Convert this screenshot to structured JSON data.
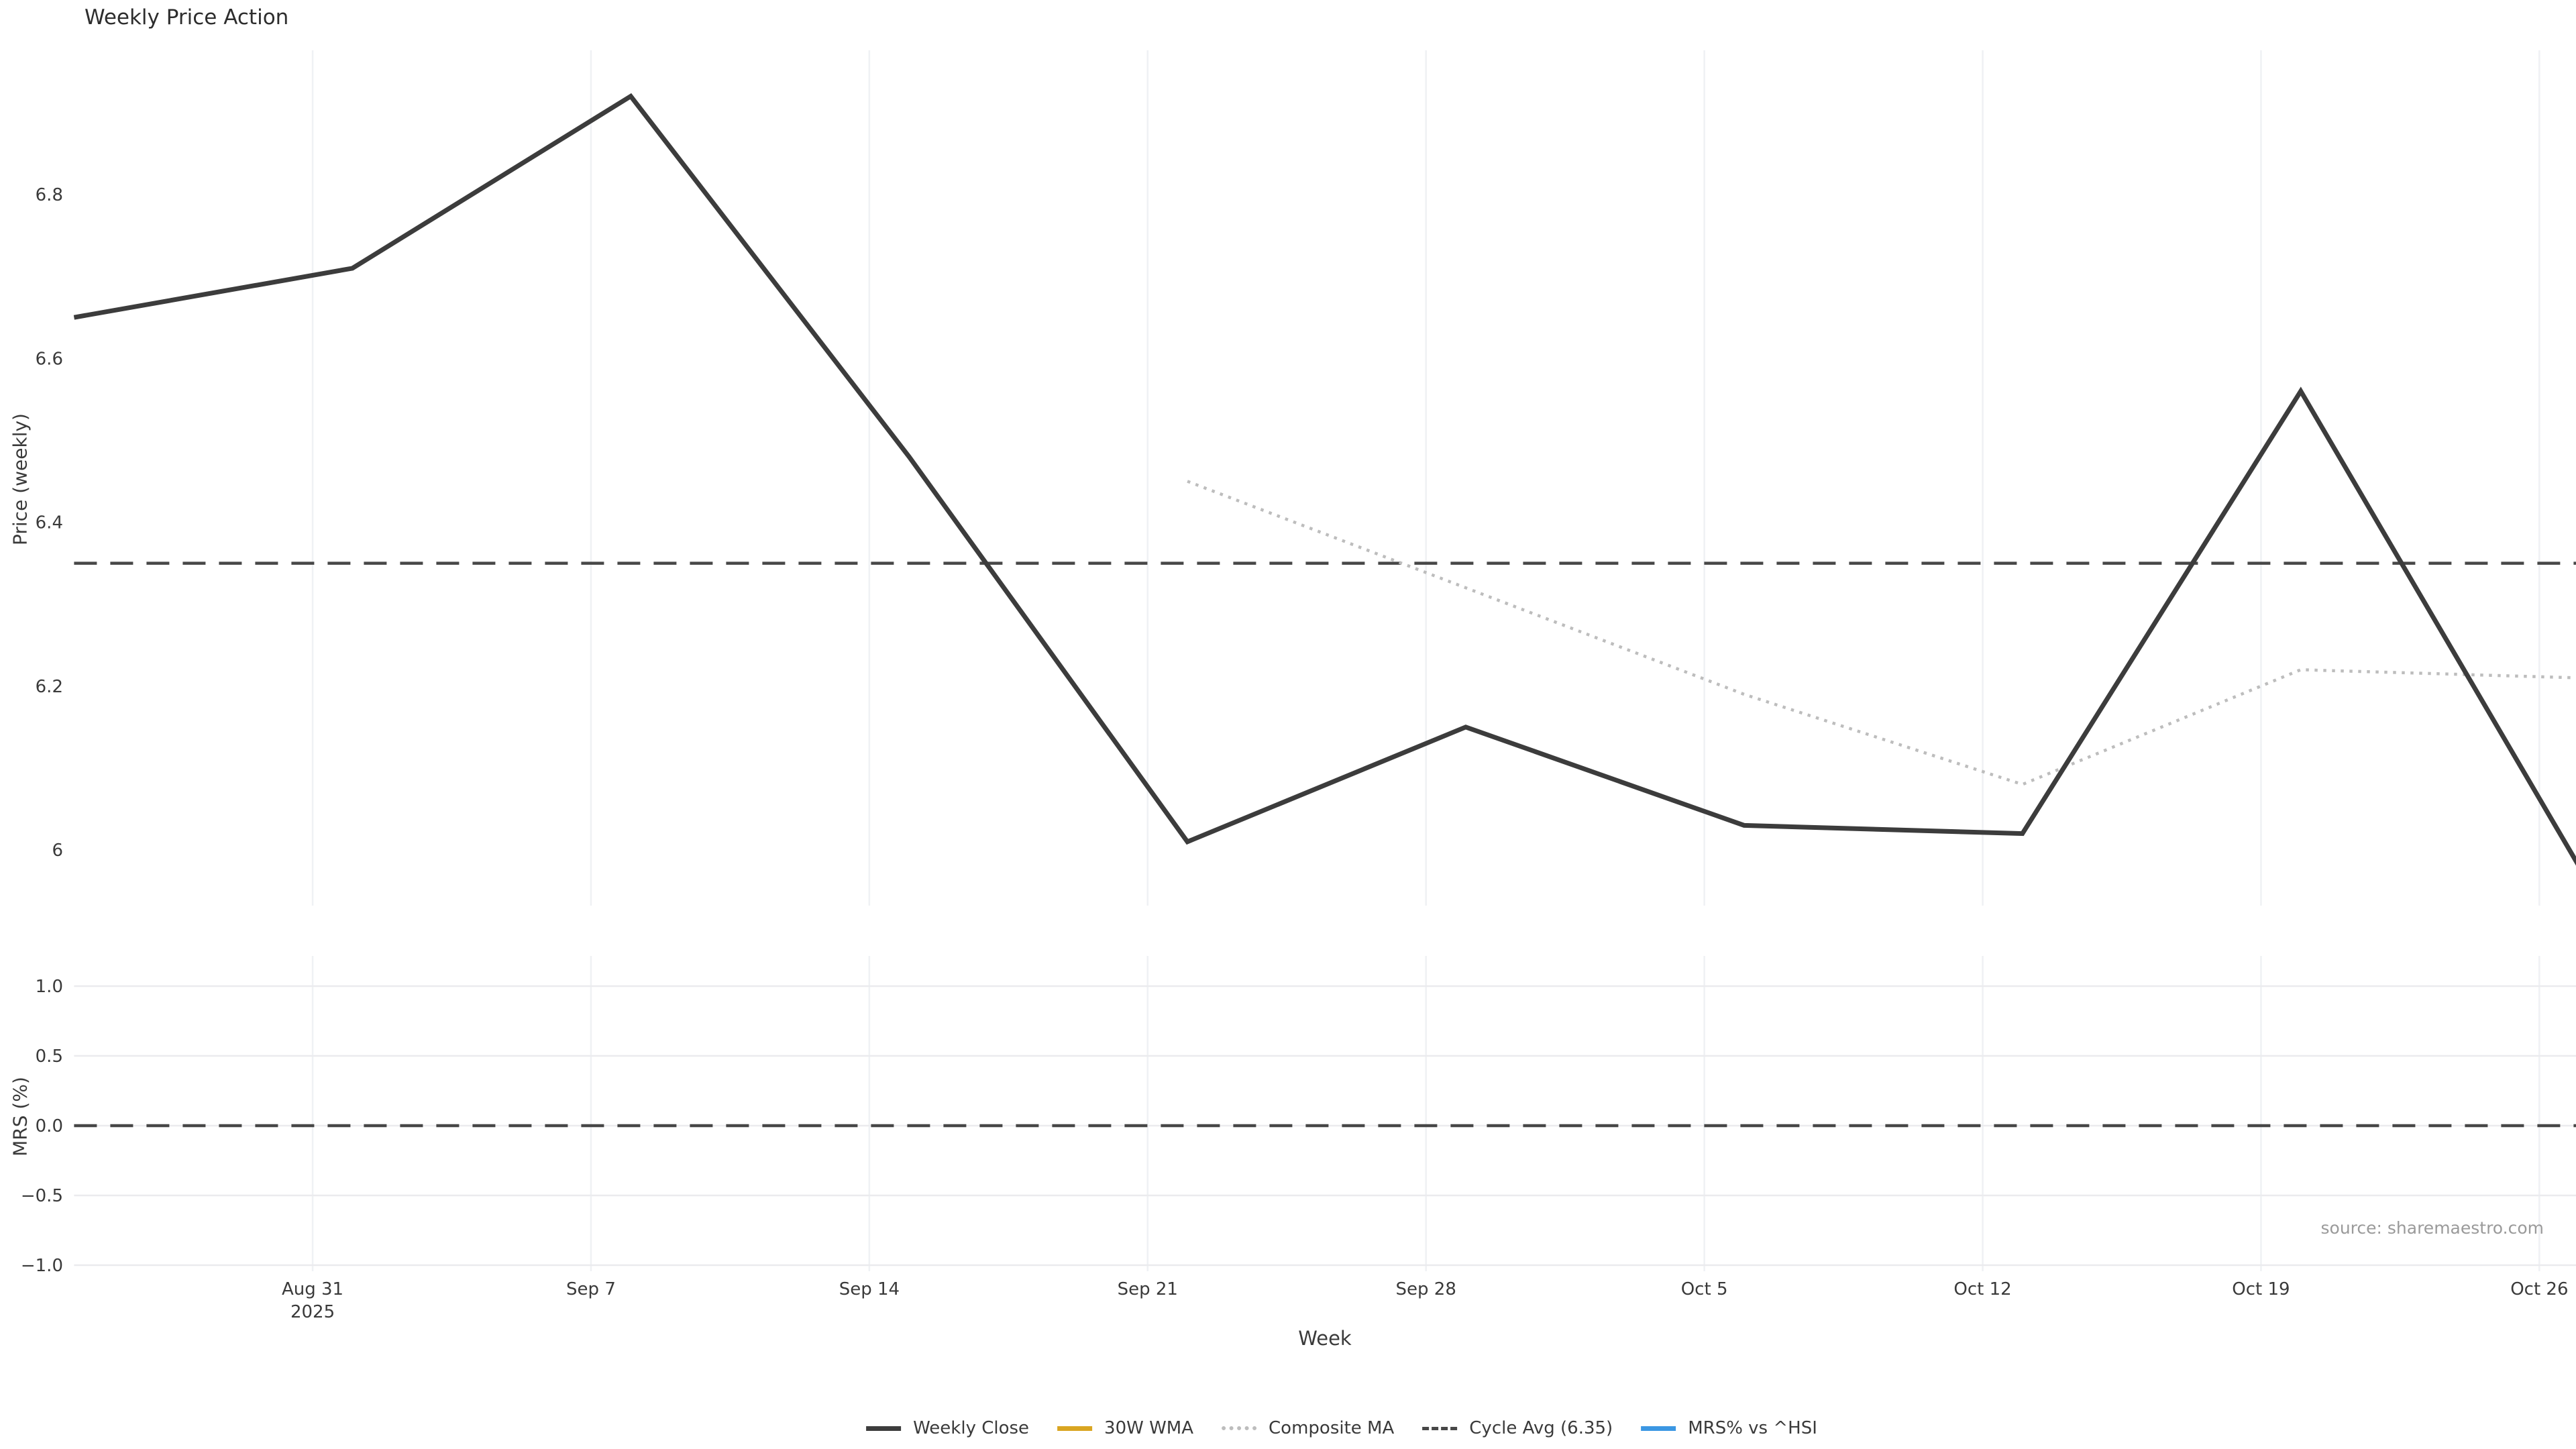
{
  "title": "Weekly Price Action",
  "source": "source: sharemaestro.com",
  "axes": {
    "price": {
      "label": "Price (weekly)",
      "tick_labels": [
        "6.8",
        "6.6",
        "6.4",
        "6.2",
        "6"
      ],
      "tick_values": [
        6.8,
        6.6,
        6.4,
        6.2,
        6.0
      ]
    },
    "mrs": {
      "label": "MRS (%)",
      "tick_labels": [
        "1.0",
        "0.5",
        "0.0",
        "−0.5",
        "−1.0"
      ],
      "tick_values": [
        1.0,
        0.5,
        0.0,
        -0.5,
        -1.0
      ]
    },
    "x": {
      "label": "Week",
      "tick_labels": [
        "Aug 31\n2025",
        "Sep 7",
        "Sep 14",
        "Sep 21",
        "Sep 28",
        "Oct 5",
        "Oct 12",
        "Oct 19",
        "Oct 26"
      ],
      "tick_positions_days": [
        6,
        13,
        20,
        27,
        34,
        41,
        48,
        55,
        62
      ]
    }
  },
  "legend": [
    {
      "label": "Weekly Close",
      "color": "#3c3c3c",
      "style": "solid"
    },
    {
      "label": "30W WMA",
      "color": "#d9a521",
      "style": "solid"
    },
    {
      "label": "Composite MA",
      "color": "#bdbdbd",
      "style": "dotted"
    },
    {
      "label": "Cycle Avg (6.35)",
      "color": "#474747",
      "style": "dashed"
    },
    {
      "label": "MRS% vs ^HSI",
      "color": "#3b97e3",
      "style": "solid"
    }
  ],
  "colors": {
    "weekly_close": "#3c3c3c",
    "wma_30w": "#d9a521",
    "composite_ma": "#bdbdbd",
    "cycle_avg": "#474747",
    "mrs_line": "#3b97e3",
    "grid_vertical": "#eff1f4",
    "grid_horizontal": "#ebebee",
    "text": "#3a3a3a",
    "source_text": "#9a9a9a"
  },
  "chart_data": [
    {
      "type": "line",
      "panel": "price",
      "title": "Weekly Price Action",
      "ylabel": "Price (weekly)",
      "xlabel": "Week",
      "x_unit": "days since Aug 25 2025 (weekly points on Mondays, ticks on Sundays)",
      "yticks": [
        6.8,
        6.6,
        6.4,
        6.2,
        6.0
      ],
      "ylim": [
        5.93,
        6.98
      ],
      "grid": "vertical weekly gridlines only",
      "legend_position": "bottom center, outside axes",
      "series": [
        {
          "name": "Weekly Close",
          "style": "solid",
          "color": "#3c3c3c",
          "dates": [
            "Aug 25",
            "Sep 1",
            "Sep 8",
            "Sep 15",
            "Sep 22",
            "Sep 29",
            "Oct 6",
            "Oct 13",
            "Oct 20",
            "Oct 27"
          ],
          "x_days": [
            0,
            7,
            14,
            21,
            28,
            35,
            42,
            49,
            56,
            63
          ],
          "values": [
            6.65,
            6.71,
            6.92,
            6.48,
            6.01,
            6.15,
            6.03,
            6.02,
            6.56,
            5.98
          ]
        },
        {
          "name": "30W WMA",
          "style": "solid",
          "color": "#d9a521",
          "dates": [],
          "x_days": [],
          "values": []
        },
        {
          "name": "Composite MA",
          "style": "dotted",
          "color": "#bdbdbd",
          "dates": [
            "Sep 22",
            "Sep 29",
            "Oct 6",
            "Oct 13",
            "Oct 20",
            "Oct 27"
          ],
          "x_days": [
            28,
            35,
            42,
            49,
            56,
            63
          ],
          "values": [
            6.45,
            6.32,
            6.19,
            6.08,
            6.22,
            6.21
          ]
        },
        {
          "name": "Cycle Avg (6.35)",
          "style": "dashed",
          "color": "#474747",
          "hline": 6.35
        }
      ]
    },
    {
      "type": "line",
      "panel": "mrs",
      "ylabel": "MRS (%)",
      "yticks": [
        1.0,
        0.5,
        0.0,
        -0.5,
        -1.0
      ],
      "ylim": [
        -1.05,
        1.2
      ],
      "grid": "horizontal gridlines at ticks plus faint weekly verticals",
      "series": [
        {
          "name": "MRS% vs ^HSI",
          "style": "solid",
          "color": "#3b97e3",
          "dates": [],
          "x_days": [],
          "values": []
        },
        {
          "name": "Zero line",
          "style": "dashed",
          "color": "#474747",
          "hline": 0.0
        }
      ]
    }
  ]
}
